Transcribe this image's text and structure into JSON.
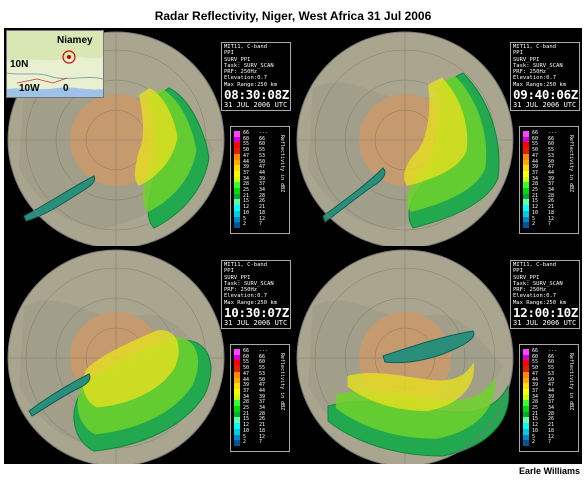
{
  "title": "Radar Reflectivity, Niger, West Africa 31 Jul 2006",
  "credit": "Earle Williams",
  "inset_map": {
    "city": "Niamey",
    "lat_label": "10N",
    "lon_label_1": "10W",
    "lon_label_2": "0"
  },
  "radar_header": {
    "line1": "MIT11, C-band",
    "line2": "PPI",
    "line3": "SURV_PPI",
    "line4": "Task: SURV_SCAN",
    "line5": "PRF: 250Hz",
    "line6": "Elevation:0.7",
    "line7": "Max Range:250 km"
  },
  "scale": {
    "unit": "Reflectivity in dBZ",
    "left_values": [
      "66",
      "60",
      "55",
      "50",
      "47",
      "44",
      "39",
      "37",
      "34",
      "28",
      "25",
      "21",
      "15",
      "12",
      "10",
      "5",
      "2"
    ],
    "right_values": [
      "---",
      "66",
      "60",
      "55",
      "53",
      "50",
      "47",
      "44",
      "39",
      "37",
      "34",
      "28",
      "26",
      "21",
      "18",
      "12",
      "7"
    ],
    "colors": [
      "#ff44ff",
      "#d400d4",
      "#ff0000",
      "#dd2200",
      "#ff8800",
      "#ffaa00",
      "#ffdd00",
      "#ffff00",
      "#ccff00",
      "#33ff33",
      "#00dd00",
      "#00aa33",
      "#66ffaa",
      "#00ffff",
      "#00ccdd",
      "#0088cc",
      "#005599"
    ]
  },
  "panels": [
    {
      "time": "08:30:08Z",
      "date": "31 JUL 2006 UTC"
    },
    {
      "time": "09:40:06Z",
      "date": "31 JUL 2006 UTC"
    },
    {
      "time": "10:30:07Z",
      "date": "31 JUL 2006 UTC"
    },
    {
      "time": "12:00:10Z",
      "date": "31 JUL 2006 UTC"
    }
  ]
}
